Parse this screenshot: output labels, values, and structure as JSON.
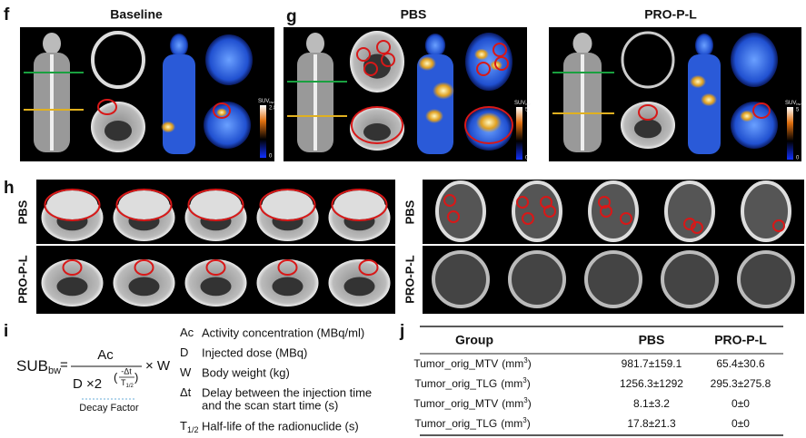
{
  "panels": {
    "f": "f",
    "g": "g",
    "h": "h",
    "i": "i",
    "j": "j"
  },
  "titles": {
    "baseline": "Baseline",
    "pbs": "PBS",
    "prol": "PRO-P-L"
  },
  "colorbars": [
    {
      "label": "SUV",
      "label_sub": "bw",
      "max": "2.8",
      "min": "0"
    },
    {
      "label": "SUV",
      "label_sub": "bw",
      "max": "5",
      "min": "0"
    },
    {
      "label": "SUV",
      "label_sub": "bw",
      "max": "5",
      "min": "0"
    }
  ],
  "row_labels": {
    "left": [
      "PBS",
      "PRO-P-L"
    ],
    "right": [
      "PBS",
      "PRO-P-L"
    ]
  },
  "formula": {
    "lhs": "SUB",
    "lhs_sub": "bw",
    "eq": "=",
    "numerator": "Ac",
    "denominator": "D ×2",
    "exp_open": "(",
    "exp_num": "-Δt",
    "exp_den": "T",
    "exp_den_sub": "1/2",
    "exp_close": ")",
    "times": "× W",
    "note": "Decay Factor"
  },
  "definitions": [
    {
      "symbol": "Ac",
      "lines": [
        "Activity concentration (MBq/ml)"
      ]
    },
    {
      "symbol": "D",
      "lines": [
        "Injected dose (MBq)"
      ]
    },
    {
      "symbol": "W",
      "lines": [
        "Body weight (kg)"
      ]
    },
    {
      "symbol": "Δt",
      "lines": [
        "Delay between the injection time",
        "and the scan start time (s)"
      ]
    },
    {
      "symbol": "T",
      "subscript": "1/2",
      "lines": [
        "Half-life of the radionuclide (s)"
      ]
    }
  ],
  "table": {
    "headers": [
      "Group",
      "PBS",
      "PRO-P-L"
    ],
    "rows": [
      {
        "name": "Tumor_orig_MTV",
        "unit": "(mm",
        "unit_exp": "3",
        "unit_close": ")",
        "pbs": "981.7±159.1",
        "prol": "65.4±30.6"
      },
      {
        "name": "Tumor_orig_TLG",
        "unit": "(mm",
        "unit_exp": "3",
        "unit_close": ")",
        "pbs": "1256.3±1292",
        "prol": "295.3±275.8"
      },
      {
        "name": "Tumor_orig_MTV",
        "unit": "(mm",
        "unit_exp": "3",
        "unit_close": ")",
        "pbs": "8.1±3.2",
        "prol": "0±0"
      },
      {
        "name": "Tumor_orig_TLG",
        "unit": "(mm",
        "unit_exp": "3",
        "unit_close": ")",
        "pbs": "17.8±21.3",
        "prol": "0±0"
      }
    ]
  }
}
